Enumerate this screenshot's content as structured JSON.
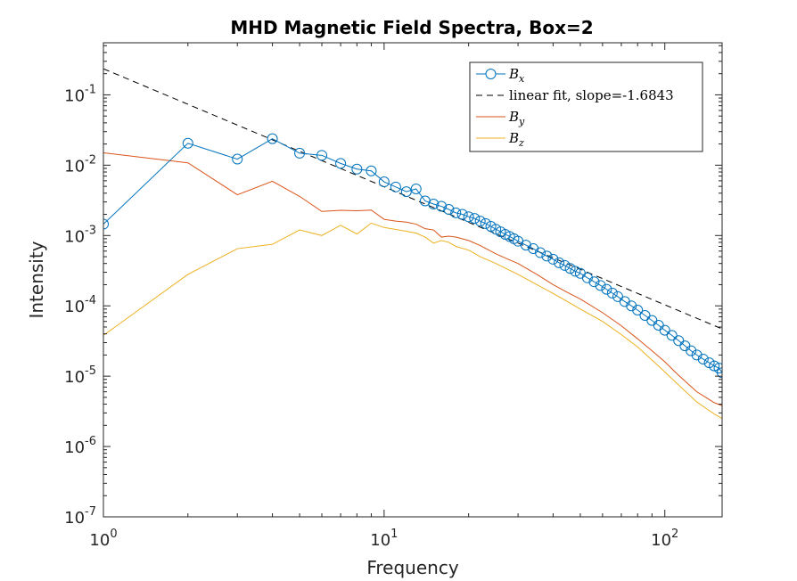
{
  "chart_data": {
    "type": "line",
    "title": "MHD Magnetic Field Spectra, Box=2",
    "xlabel": "Frequency",
    "ylabel": "Intensity",
    "xscale": "log",
    "yscale": "log",
    "xlim": [
      1,
      160
    ],
    "ylim": [
      1e-07,
      0.55
    ],
    "grid": false,
    "legend_position": "top-right",
    "x_ticks": [
      {
        "base": "10",
        "exp": "0",
        "value": 1
      },
      {
        "base": "10",
        "exp": "1",
        "value": 10
      },
      {
        "base": "10",
        "exp": "2",
        "value": 100
      }
    ],
    "y_ticks": [
      {
        "base": "10",
        "exp": "-7",
        "value": 1e-07
      },
      {
        "base": "10",
        "exp": "-6",
        "value": 1e-06
      },
      {
        "base": "10",
        "exp": "-5",
        "value": 1e-05
      },
      {
        "base": "10",
        "exp": "-4",
        "value": 0.0001
      },
      {
        "base": "10",
        "exp": "-3",
        "value": 0.001
      },
      {
        "base": "10",
        "exp": "-2",
        "value": 0.01
      },
      {
        "base": "10",
        "exp": "-1",
        "value": 0.1
      }
    ],
    "series": [
      {
        "name": "Bx",
        "legend_main": "B",
        "legend_sub": "x",
        "color": "#0072BD",
        "style": "line-circle",
        "x": [
          1,
          2,
          3,
          4,
          5,
          6,
          7,
          8,
          9,
          10,
          11,
          12,
          13,
          14,
          15,
          16,
          17,
          18,
          19,
          20,
          21,
          22,
          23,
          24,
          25,
          26,
          27,
          28,
          29,
          30,
          32,
          34,
          36,
          38,
          40,
          42,
          44,
          46,
          48,
          50,
          53,
          56,
          59,
          62,
          65,
          68,
          72,
          76,
          80,
          85,
          90,
          95,
          100,
          106,
          112,
          118,
          124,
          130,
          137,
          144,
          150,
          156,
          160
        ],
        "y": [
          0.00145,
          0.0205,
          0.0122,
          0.0238,
          0.0148,
          0.0138,
          0.0106,
          0.0088,
          0.0083,
          0.0058,
          0.0049,
          0.0042,
          0.0046,
          0.0031,
          0.0028,
          0.0026,
          0.00235,
          0.0021,
          0.002,
          0.00185,
          0.00175,
          0.0016,
          0.00148,
          0.00135,
          0.00123,
          0.00113,
          0.00104,
          0.00097,
          0.0009,
          0.00083,
          0.00073,
          0.00065,
          0.00057,
          0.00051,
          0.00046,
          0.00041,
          0.000375,
          0.00034,
          0.00031,
          0.00029,
          0.00025,
          0.00022,
          0.000195,
          0.000172,
          0.000152,
          0.000135,
          0.000115,
          0.0001,
          8.7e-05,
          7.3e-05,
          6.2e-05,
          5.3e-05,
          4.5e-05,
          3.8e-05,
          3.2e-05,
          2.7e-05,
          2.3e-05,
          2e-05,
          1.75e-05,
          1.55e-05,
          1.4e-05,
          1.3e-05,
          1.12e-05
        ]
      },
      {
        "name": "linear fit, slope=-1.6843",
        "legend_text": "linear fit, slope=-1.6843",
        "color": "#000000",
        "style": "dashed",
        "x": [
          1,
          160
        ],
        "y": [
          0.235,
          4.7e-05
        ]
      },
      {
        "name": "By",
        "legend_main": "B",
        "legend_sub": "y",
        "color": "#D95319",
        "style": "line",
        "x": [
          1,
          2,
          3,
          4,
          5,
          6,
          7,
          8,
          9,
          10,
          11,
          12,
          13,
          14,
          15,
          16,
          17,
          18,
          20,
          22,
          25,
          28,
          30,
          35,
          40,
          45,
          50,
          60,
          70,
          80,
          90,
          100,
          110,
          120,
          130,
          140,
          150,
          160
        ],
        "y": [
          0.015,
          0.0108,
          0.0038,
          0.0059,
          0.0036,
          0.0022,
          0.00228,
          0.00225,
          0.0023,
          0.0017,
          0.0016,
          0.00155,
          0.00145,
          0.00125,
          0.0012,
          0.00095,
          0.00098,
          0.00095,
          0.00085,
          0.00072,
          0.00055,
          0.00045,
          0.0004,
          0.00028,
          0.0002,
          0.000155,
          0.000125,
          8e-05,
          5.2e-05,
          3.4e-05,
          2.3e-05,
          1.6e-05,
          1.1e-05,
          8e-06,
          6e-06,
          5e-06,
          4.2e-06,
          3.8e-06
        ]
      },
      {
        "name": "Bz",
        "legend_main": "B",
        "legend_sub": "z",
        "color": "#EDB120",
        "style": "line",
        "x": [
          1,
          2,
          3,
          4,
          5,
          6,
          7,
          8,
          9,
          10,
          11,
          12,
          13,
          14,
          15,
          16,
          17,
          18,
          20,
          22,
          25,
          28,
          30,
          35,
          40,
          45,
          50,
          60,
          70,
          80,
          90,
          100,
          110,
          120,
          130,
          140,
          150,
          160
        ],
        "y": [
          3.8e-05,
          0.00028,
          0.00065,
          0.00075,
          0.0012,
          0.001,
          0.0014,
          0.00105,
          0.0015,
          0.0013,
          0.00122,
          0.00115,
          0.00108,
          0.00095,
          0.00078,
          0.00085,
          0.0008,
          0.0007,
          0.00062,
          0.0005,
          0.0004,
          0.00032,
          0.00028,
          0.0002,
          0.00015,
          0.000115,
          9e-05,
          6e-05,
          3.9e-05,
          2.6e-05,
          1.7e-05,
          1.15e-05,
          8e-06,
          5.8e-06,
          4.3e-06,
          3.5e-06,
          2.9e-06,
          2.5e-06
        ]
      }
    ]
  }
}
